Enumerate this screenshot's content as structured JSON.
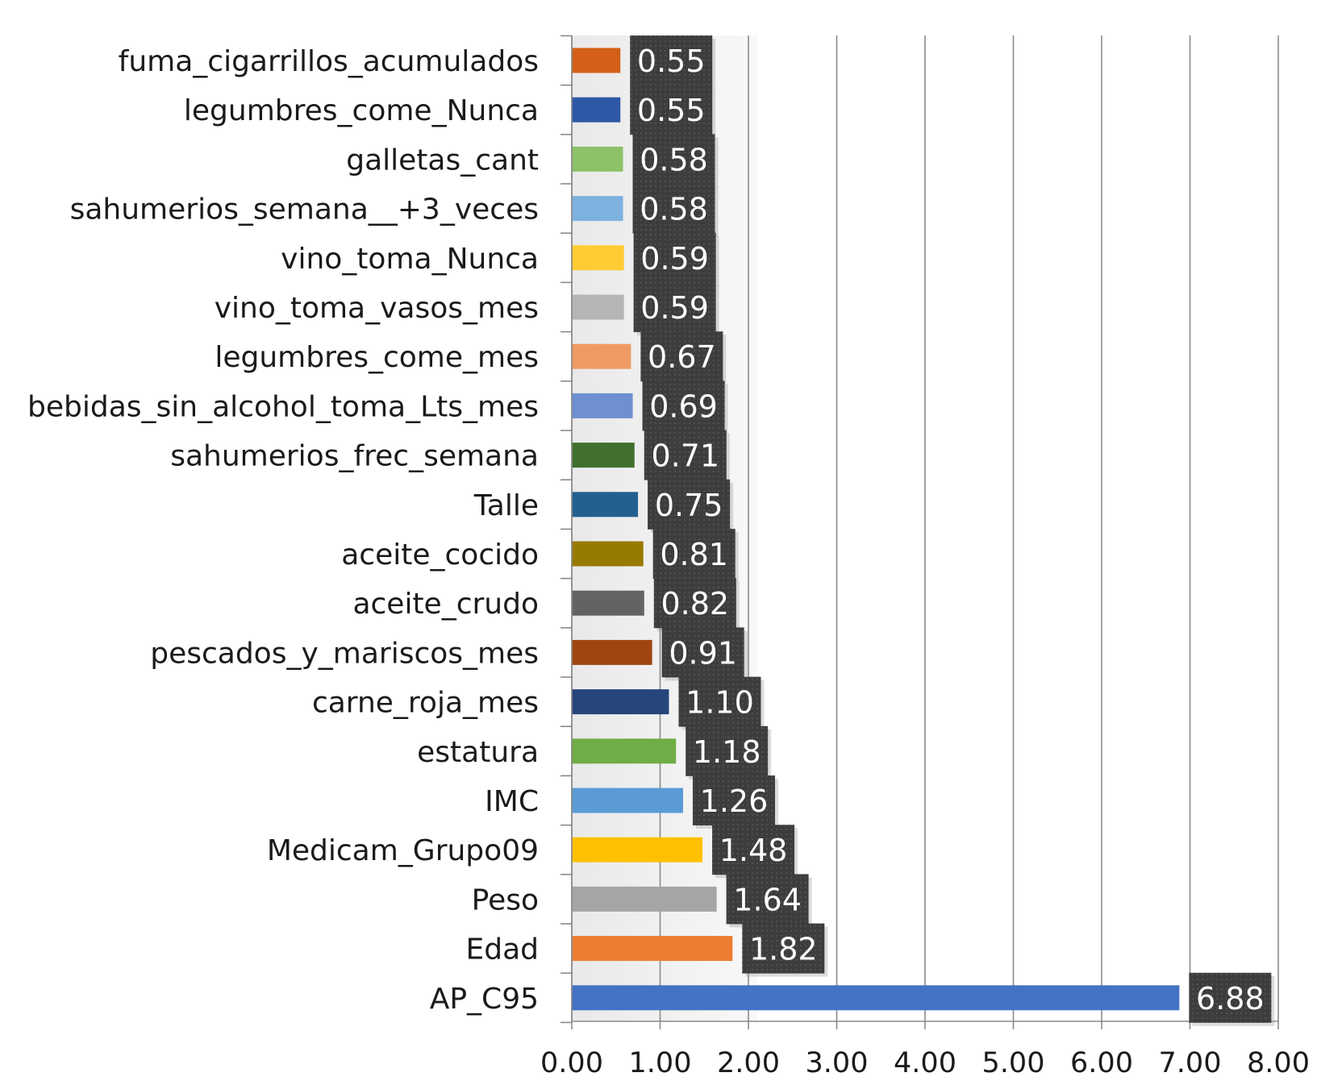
{
  "chart_data": {
    "type": "bar",
    "orientation": "horizontal",
    "title": "",
    "xlabel": "",
    "ylabel": "",
    "xlim": [
      0,
      8
    ],
    "x_ticks": [
      "0.00",
      "1.00",
      "2.00",
      "3.00",
      "4.00",
      "5.00",
      "6.00",
      "7.00",
      "8.00"
    ],
    "grid": true,
    "categories": [
      "fuma_cigarrillos_acumulados",
      "legumbres_come_Nunca",
      "galletas_cant",
      "sahumerios_semana__+3_veces",
      "vino_toma_Nunca",
      "vino_toma_vasos_mes",
      "legumbres_come_mes",
      "bebidas_sin_alcohol_toma_Lts_mes",
      "sahumerios_frec_semana",
      "Talle",
      "aceite_cocido",
      "aceite_crudo",
      "pescados_y_mariscos_mes",
      "carne_roja_mes",
      "estatura",
      "IMC",
      "Medicam_Grupo09",
      "Peso",
      "Edad",
      "AP_C95"
    ],
    "values": [
      0.55,
      0.55,
      0.58,
      0.58,
      0.59,
      0.59,
      0.67,
      0.69,
      0.71,
      0.75,
      0.81,
      0.82,
      0.91,
      1.1,
      1.18,
      1.26,
      1.48,
      1.64,
      1.82,
      6.88
    ],
    "value_labels": [
      "0.55",
      "0.55",
      "0.58",
      "0.58",
      "0.59",
      "0.59",
      "0.67",
      "0.69",
      "0.71",
      "0.75",
      "0.81",
      "0.82",
      "0.91",
      "1.10",
      "1.18",
      "1.26",
      "1.48",
      "1.64",
      "1.82",
      "6.88"
    ],
    "colors": [
      "#D35F18",
      "#2E57A5",
      "#8CC168",
      "#7DB1DE",
      "#FFCC33",
      "#B5B5B5",
      "#F09A63",
      "#6E8FD1",
      "#41702E",
      "#24608F",
      "#977A00",
      "#636363",
      "#9F4610",
      "#27457A",
      "#6FAD46",
      "#5B9BD5",
      "#FFC000",
      "#A5A5A5",
      "#ED7D31",
      "#4472C4"
    ],
    "data_label_bg": "#3d3d3d"
  }
}
